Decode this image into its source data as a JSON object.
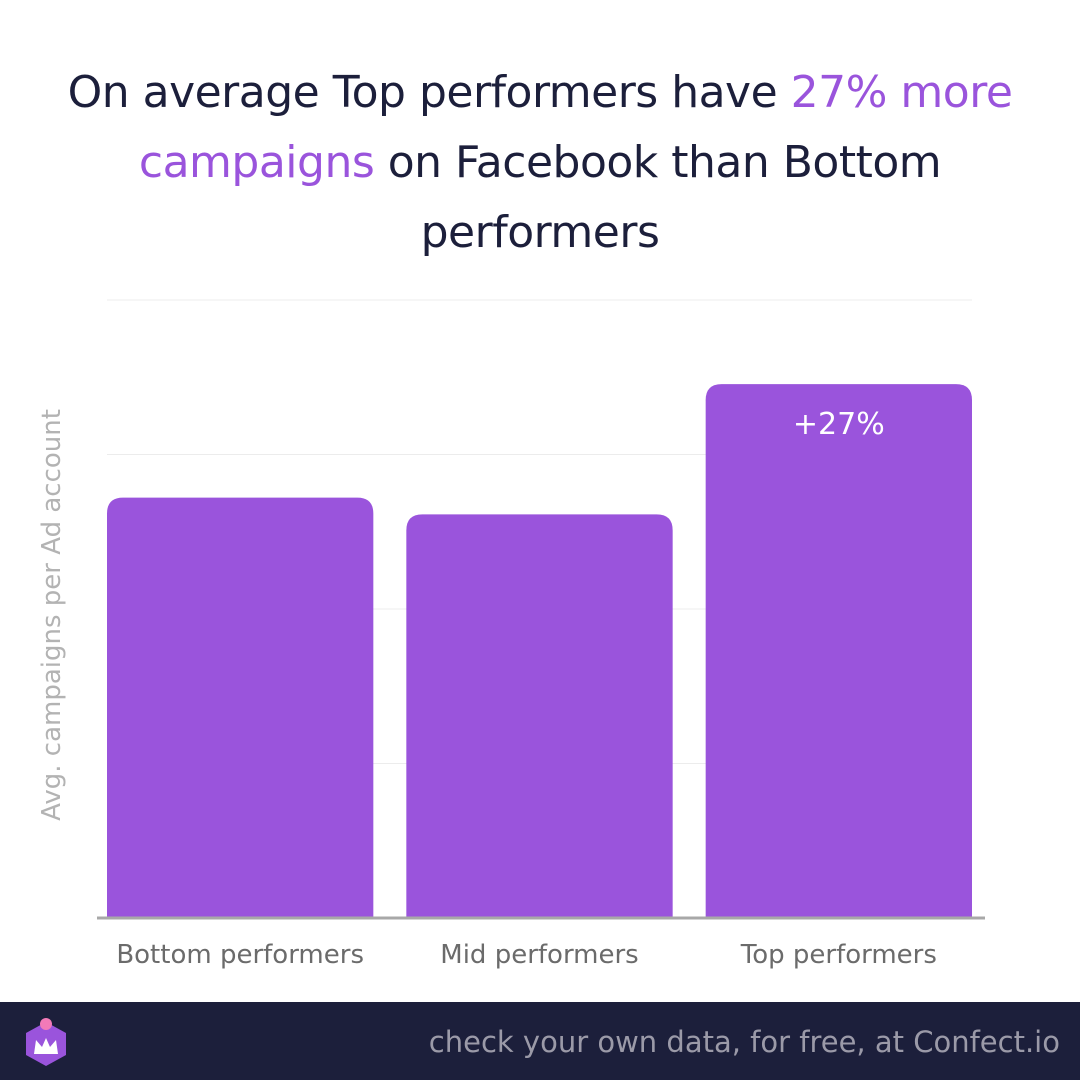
{
  "title": {
    "part1": "On average Top performers have ",
    "highlight": "27% more campaigns",
    "part2": " on Facebook than Bottom performers"
  },
  "colors": {
    "bar": "#9a54dc",
    "accent": "#9a54dc",
    "title": "#1c1f3b",
    "footer_bg": "#1c1f3b",
    "axis_label": "#b3b3b3",
    "tick_label": "#6b6b6b"
  },
  "chart_data": {
    "type": "bar",
    "categories": [
      "Bottom performers",
      "Mid performers",
      "Top performers"
    ],
    "values": [
      1.0,
      0.96,
      1.27
    ],
    "annotations": [
      "",
      "",
      "+27%"
    ],
    "title": "On average Top performers have 27% more campaigns on Facebook than Bottom performers",
    "xlabel": "",
    "ylabel": "Avg. campaigns per Ad account",
    "ylim": [
      0,
      1.47
    ],
    "grid": true,
    "legend": "none"
  },
  "footer": {
    "text": "check your own data, for free, at Confect.io",
    "logo_icon": "confect-crown-logo-icon"
  }
}
